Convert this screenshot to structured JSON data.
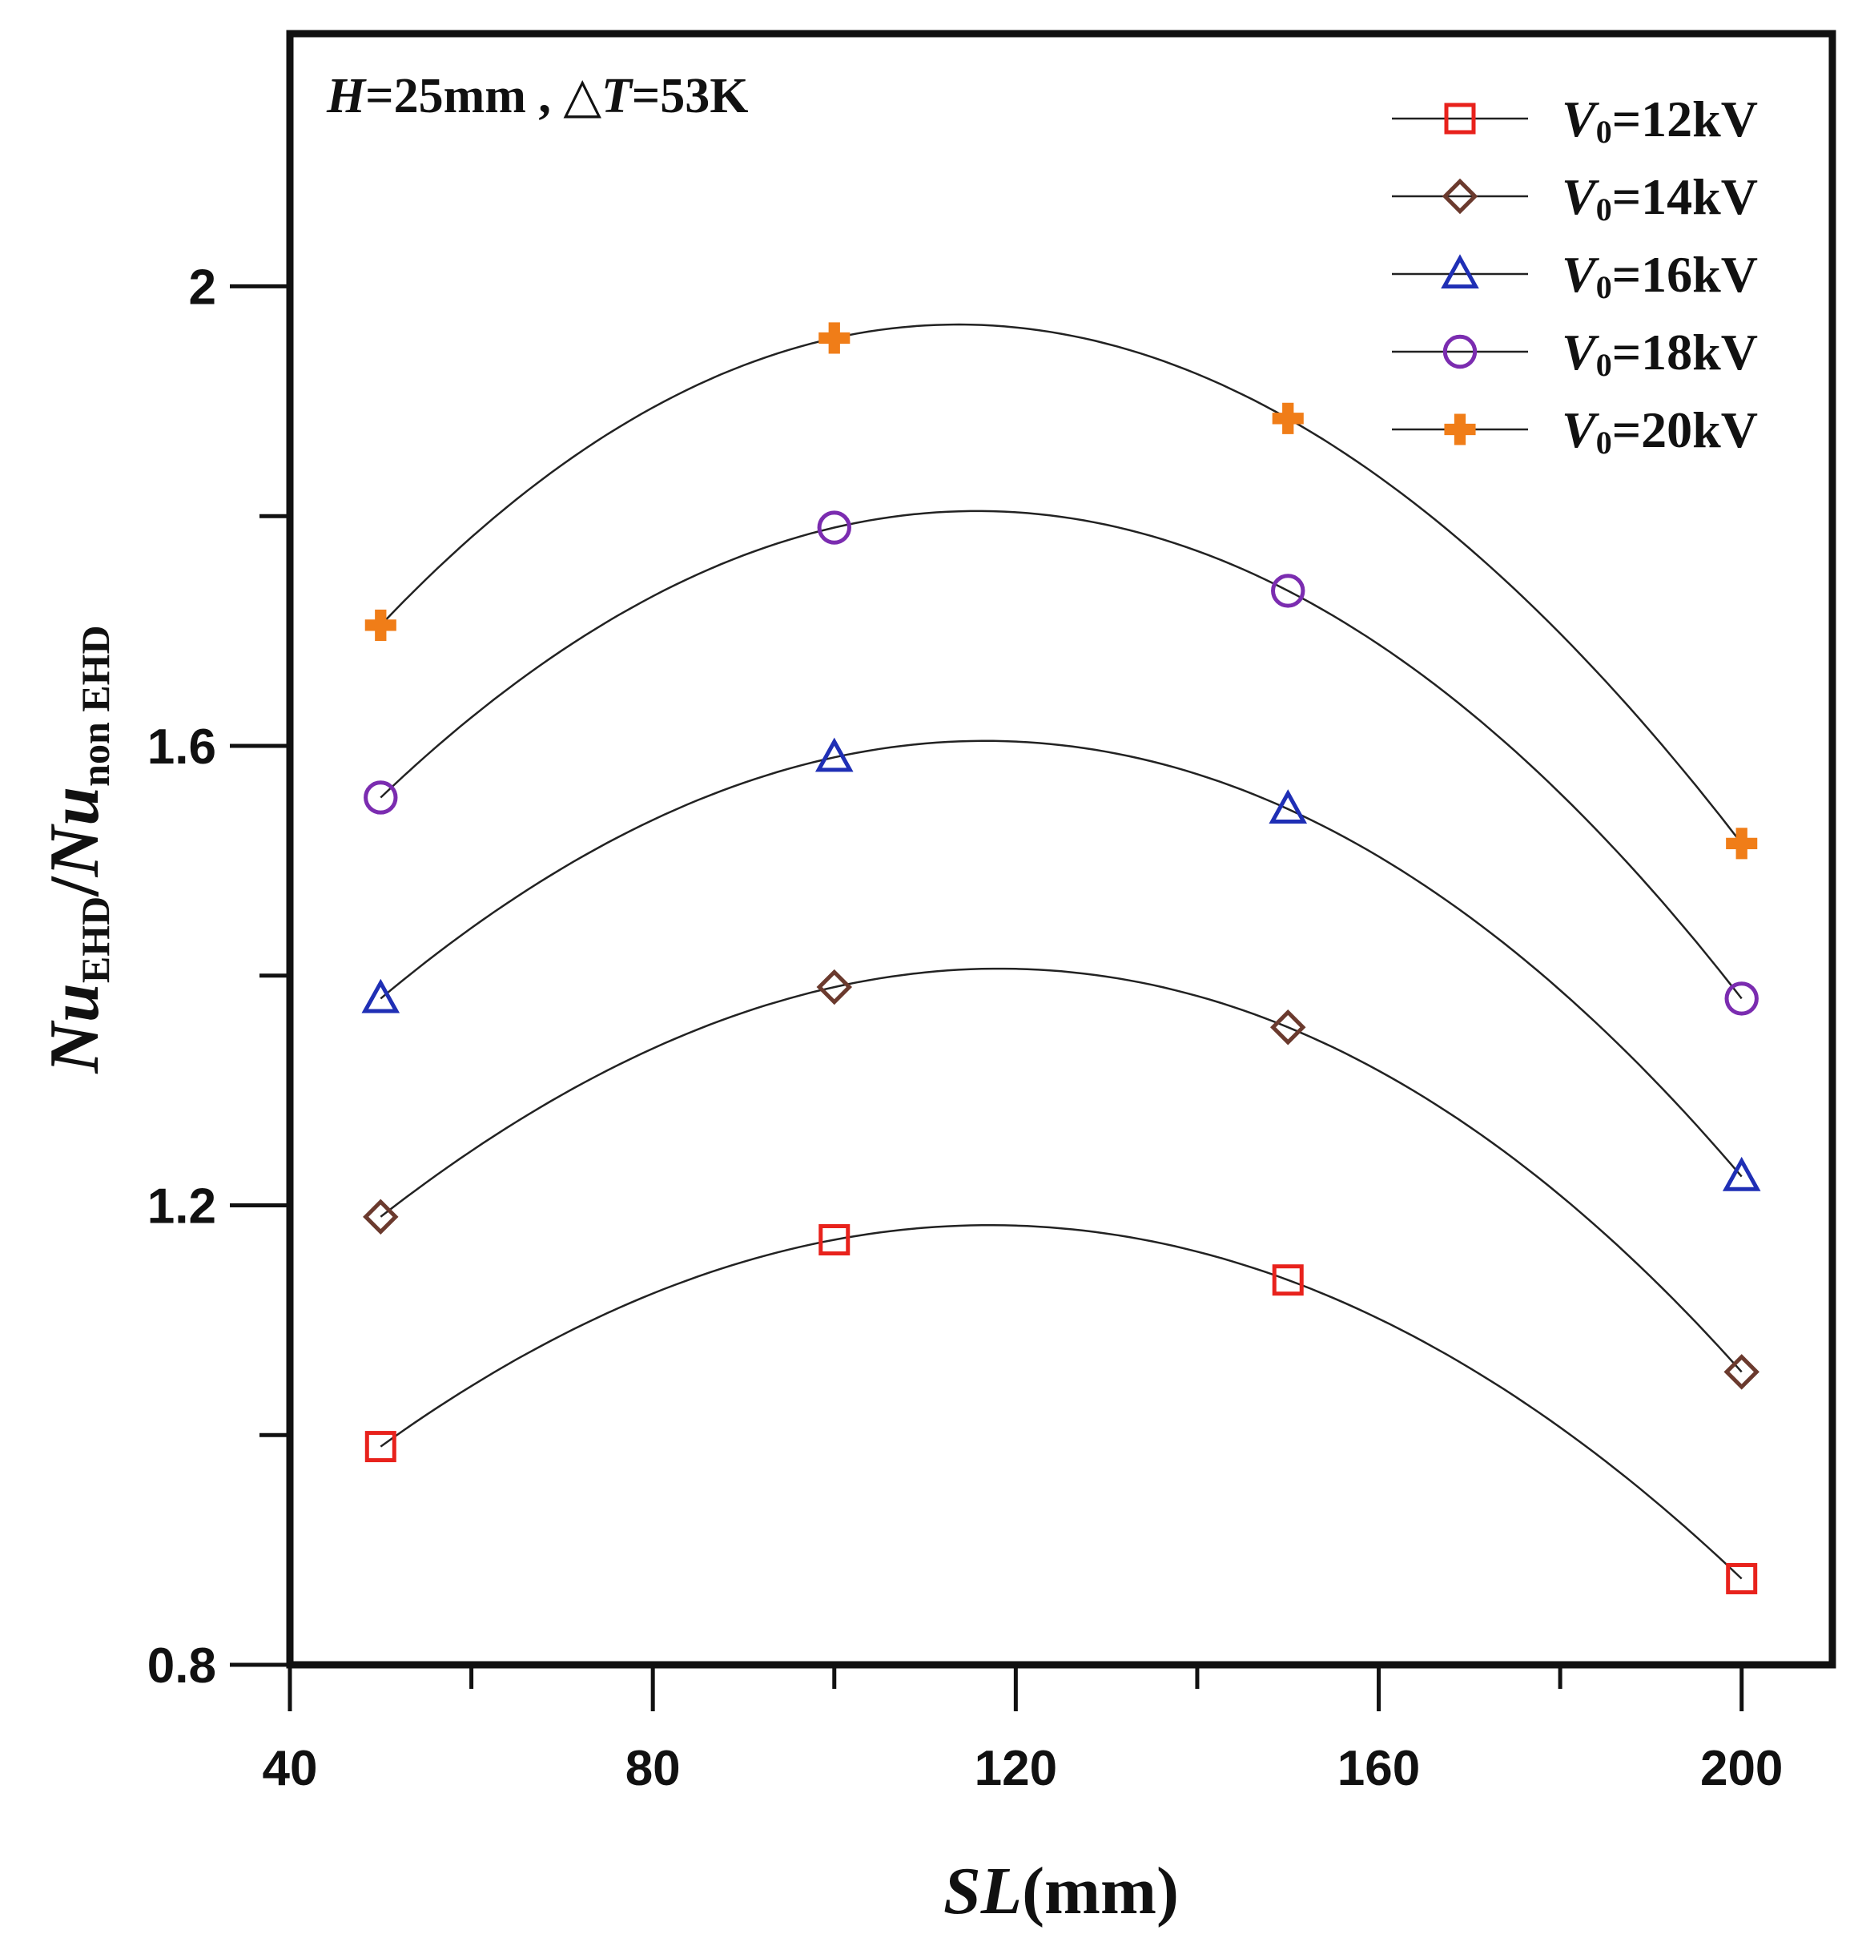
{
  "chart_data": {
    "type": "line",
    "annotation": {
      "h_var": "H",
      "h_value": "=25mm , ",
      "dt_symbol": "△",
      "dt_var": "T",
      "dt_value": "=53K"
    },
    "xlabel": {
      "var": "SL",
      "unit": "(mm)"
    },
    "ylabel": {
      "nu1": "Nu",
      "sub1": "EHD",
      "slash": "/",
      "nu2": "Nu",
      "sub2": "non EHD"
    },
    "xlim": [
      40,
      210
    ],
    "ylim": [
      0.8,
      2.22
    ],
    "x_ticks": [
      40,
      80,
      120,
      160,
      200
    ],
    "x_minor_ticks": [
      60,
      100,
      140,
      180
    ],
    "y_ticks": [
      0.8,
      1.2,
      1.6,
      2.0
    ],
    "y_minor_ticks": [
      1.0,
      1.4,
      1.8
    ],
    "x_tick_labels": [
      "40",
      "80",
      "120",
      "160",
      "200"
    ],
    "y_tick_labels": [
      "0.8",
      "1.2",
      "1.6",
      "2"
    ],
    "x": [
      50,
      100,
      150,
      200
    ],
    "series": [
      {
        "name": "V0=12kV",
        "label_var": "V",
        "label_sub": "0",
        "label_rest": "=12kV",
        "marker": "square",
        "color": "#e8221c",
        "values": [
          0.99,
          1.17,
          1.135,
          0.875
        ]
      },
      {
        "name": "V0=14kV",
        "label_var": "V",
        "label_sub": "0",
        "label_rest": "=14kV",
        "marker": "diamond",
        "color": "#6b3a2e",
        "values": [
          1.19,
          1.39,
          1.355,
          1.055
        ]
      },
      {
        "name": "V0=16kV",
        "label_var": "V",
        "label_sub": "0",
        "label_rest": "=16kV",
        "marker": "triangle",
        "color": "#1f2fb5",
        "values": [
          1.38,
          1.59,
          1.545,
          1.225
        ]
      },
      {
        "name": "V0=18kV",
        "label_var": "V",
        "label_sub": "0",
        "label_rest": "=18kV",
        "marker": "circle",
        "color": "#7b2cb0",
        "values": [
          1.555,
          1.79,
          1.735,
          1.38
        ]
      },
      {
        "name": "V0=20kV",
        "label_var": "V",
        "label_sub": "0",
        "label_rest": "=20kV",
        "marker": "plus",
        "color": "#f07d18",
        "values": [
          1.705,
          1.955,
          1.885,
          1.515
        ]
      }
    ],
    "fit_curve_color": "#222222",
    "legend_position": "top-right"
  }
}
